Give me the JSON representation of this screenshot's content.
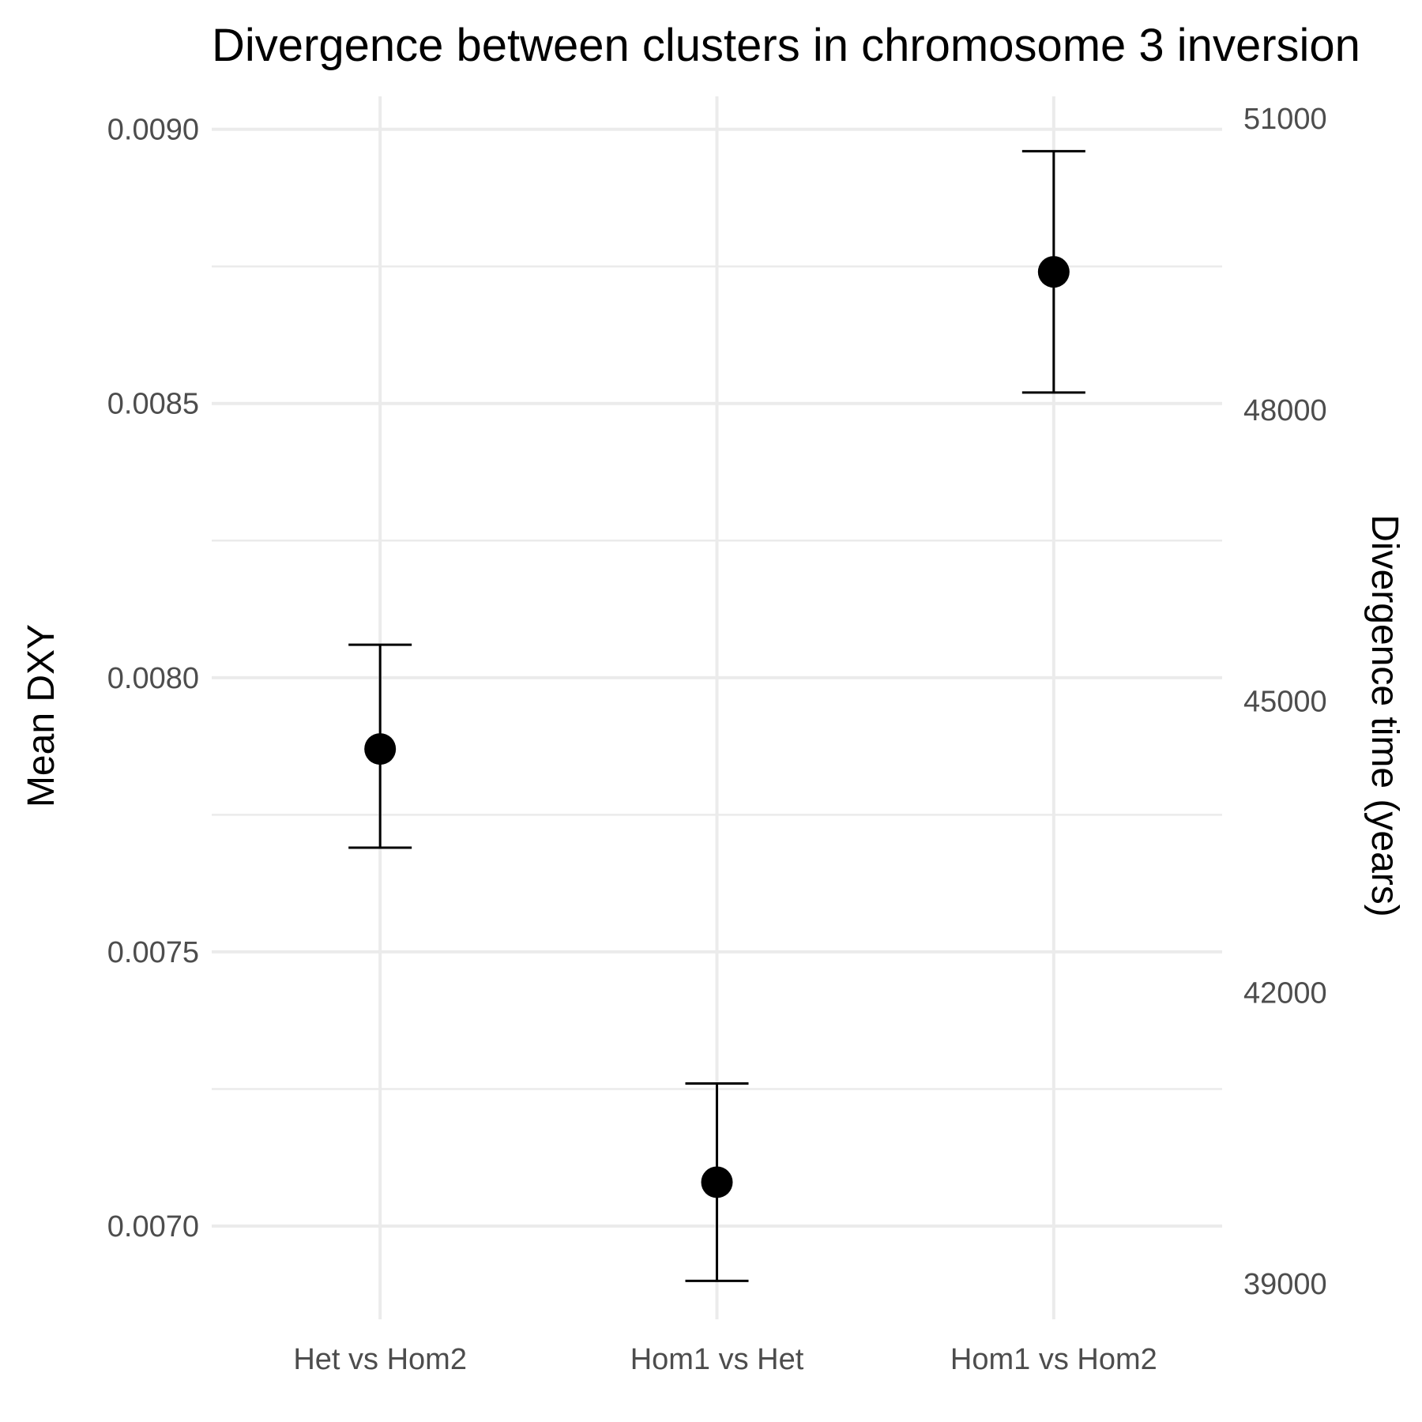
{
  "chart_data": {
    "type": "scatter",
    "title": "Divergence between clusters in chromosome 3 inversion",
    "xlabel": "",
    "ylabel": "Mean DXY",
    "y2label": "Divergence time (years)",
    "categories": [
      "Het vs Hom2",
      "Hom1 vs Het",
      "Hom1 vs Hom2"
    ],
    "series": [
      {
        "values": [
          0.00787,
          0.00708,
          0.00874
        ],
        "error_low": [
          0.00769,
          0.0069,
          0.00852
        ],
        "error_high": [
          0.00806,
          0.00726,
          0.00896
        ]
      }
    ],
    "ylim": [
      0.00683,
      0.00906
    ],
    "yticks": [
      0.007,
      0.0075,
      0.008,
      0.0085,
      0.009
    ],
    "ytick_labels": [
      "0.0070",
      "0.0075",
      "0.0080",
      "0.0085",
      "0.0090"
    ],
    "y2ticks": [
      39000,
      42000,
      45000,
      48000,
      51000
    ],
    "y2tick_labels": [
      "39000",
      "42000",
      "45000",
      "48000",
      "51000"
    ],
    "grid": true,
    "legend": "none"
  }
}
